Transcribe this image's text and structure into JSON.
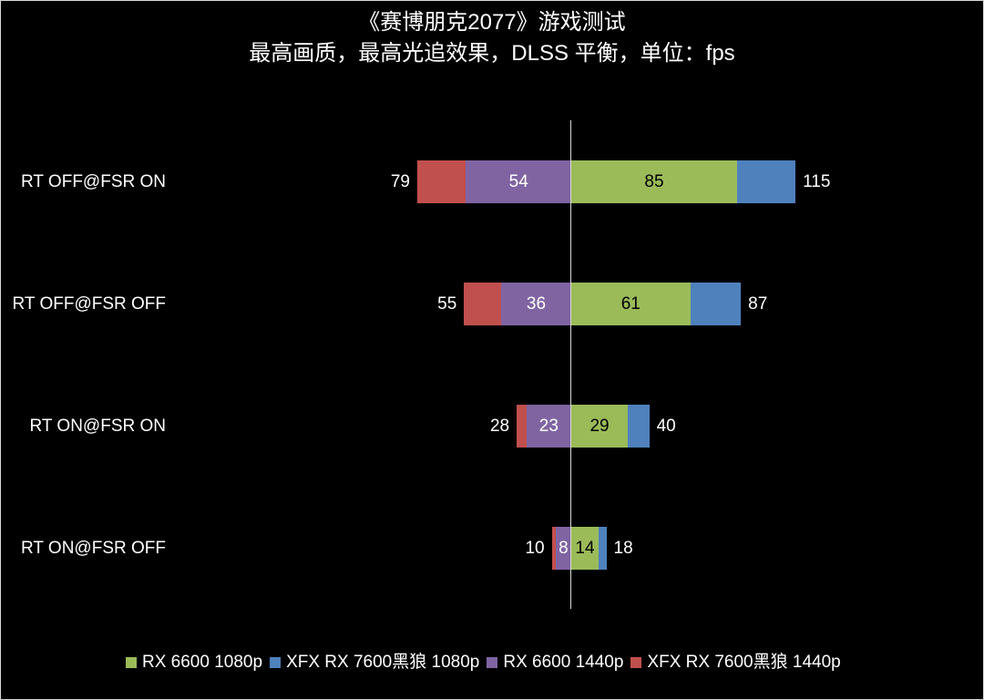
{
  "chart_data": {
    "type": "bar",
    "orientation": "horizontal",
    "layout": "diverging-stacked",
    "title": "《赛博朋克2077》游戏测试",
    "subtitle": "最高画质，最高光追效果，DLSS 平衡，单位：fps",
    "categories": [
      "RT OFF@FSR ON",
      "RT OFF@FSR OFF",
      "RT ON@FSR ON",
      "RT ON@FSR OFF"
    ],
    "series": [
      {
        "name": "RX 6600 1080p",
        "color": "#9BBB59",
        "side": "right",
        "values": [
          85,
          61,
          29,
          14
        ]
      },
      {
        "name": "XFX RX 7600黑狼 1080p",
        "color": "#4F81BD",
        "side": "right",
        "values": [
          115,
          87,
          40,
          18
        ]
      },
      {
        "name": "RX 6600 1440p",
        "color": "#8064A2",
        "side": "left",
        "values": [
          54,
          36,
          23,
          8
        ]
      },
      {
        "name": "XFX RX 7600黑狼 1440p",
        "color": "#C0504D",
        "side": "left",
        "values": [
          79,
          55,
          28,
          10
        ]
      }
    ],
    "unit": "fps",
    "xlabel": "",
    "ylabel": "",
    "grid": false,
    "legend_position": "bottom"
  },
  "title": {
    "line1": "《赛博朋克2077》游戏测试",
    "line2": "最高画质，最高光追效果，DLSS 平衡，单位：fps"
  },
  "rows": [
    {
      "label": "RT OFF@FSR ON",
      "rx6600_1080": "85",
      "rx7600_1080": "115",
      "rx6600_1440": "54",
      "rx7600_1440": "79"
    },
    {
      "label": "RT OFF@FSR OFF",
      "rx6600_1080": "61",
      "rx7600_1080": "87",
      "rx6600_1440": "36",
      "rx7600_1440": "55"
    },
    {
      "label": "RT ON@FSR ON",
      "rx6600_1080": "29",
      "rx7600_1080": "40",
      "rx6600_1440": "23",
      "rx7600_1440": "28"
    },
    {
      "label": "RT ON@FSR OFF",
      "rx6600_1080": "14",
      "rx7600_1080": "18",
      "rx6600_1440": "8",
      "rx7600_1440": "10"
    }
  ],
  "legend": [
    {
      "label": "RX 6600 1080p",
      "color": "#9BBB59"
    },
    {
      "label": "XFX RX 7600黑狼 1080p",
      "color": "#4F81BD"
    },
    {
      "label": "RX 6600 1440p",
      "color": "#8064A2"
    },
    {
      "label": "XFX RX 7600黑狼 1440p",
      "color": "#C0504D"
    }
  ]
}
